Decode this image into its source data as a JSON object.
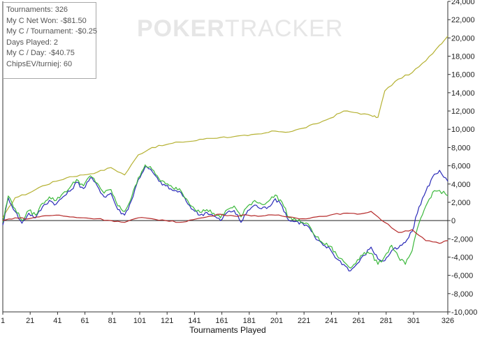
{
  "watermark": {
    "bold": "POKER",
    "thin": "TRACKER"
  },
  "stats": [
    "Tournaments: 326",
    "My C Net Won: -$81.50",
    "My C / Tournament: -$0.25",
    "Days Played: 2",
    "My C / Day: -$40.75",
    "ChipsEV/turniej: 60"
  ],
  "chart_data": {
    "type": "line",
    "xlabel": "Tournaments Played",
    "ylabel": "",
    "xlim": [
      1,
      326
    ],
    "ylim": [
      -10000,
      24000
    ],
    "x_ticks": [
      1,
      21,
      41,
      61,
      81,
      101,
      121,
      141,
      161,
      181,
      201,
      221,
      241,
      261,
      281,
      301,
      326
    ],
    "y_ticks": [
      -10000,
      -8000,
      -6000,
      -4000,
      -2000,
      0,
      2000,
      4000,
      6000,
      8000,
      10000,
      12000,
      14000,
      16000,
      18000,
      20000,
      22000,
      24000
    ],
    "y_tick_labels": [
      "-10,000",
      "-8,000",
      "-6,000",
      "-4,000",
      "-2,000",
      "0",
      "2,000",
      "4,000",
      "6,000",
      "8,000",
      "10,000",
      "12,000",
      "14,000",
      "16,000",
      "18,000",
      "20,000",
      "22,000",
      "24,000"
    ],
    "grid": false,
    "zero_line": true,
    "series": [
      {
        "color": "#b5b132",
        "x": [
          1,
          10,
          20,
          30,
          40,
          50,
          60,
          70,
          80,
          90,
          100,
          110,
          120,
          130,
          140,
          150,
          160,
          170,
          180,
          190,
          200,
          210,
          220,
          230,
          240,
          250,
          260,
          270,
          275,
          280,
          290,
          300,
          310,
          320,
          326
        ],
        "y": [
          300,
          2500,
          3000,
          3800,
          4300,
          4800,
          5000,
          5300,
          5800,
          5000,
          7200,
          8000,
          8300,
          8600,
          8700,
          9000,
          9100,
          9200,
          9300,
          9500,
          9800,
          9700,
          10100,
          10600,
          11200,
          12000,
          11800,
          11500,
          11300,
          14200,
          15500,
          16200,
          17500,
          19200,
          20200
        ]
      },
      {
        "color": "#2a2ab8",
        "x": [
          1,
          5,
          10,
          15,
          20,
          25,
          30,
          35,
          40,
          45,
          50,
          55,
          60,
          65,
          70,
          75,
          80,
          85,
          90,
          95,
          100,
          105,
          110,
          115,
          120,
          125,
          130,
          135,
          140,
          145,
          150,
          155,
          160,
          165,
          170,
          175,
          180,
          185,
          190,
          195,
          200,
          205,
          210,
          215,
          220,
          225,
          230,
          235,
          240,
          245,
          250,
          255,
          260,
          265,
          270,
          275,
          280,
          285,
          290,
          295,
          300,
          305,
          310,
          315,
          320,
          326
        ],
        "y": [
          -500,
          2500,
          1000,
          -300,
          800,
          300,
          1500,
          2200,
          1800,
          2600,
          3200,
          4200,
          3500,
          4700,
          3800,
          2600,
          3000,
          1200,
          600,
          2200,
          4500,
          5900,
          5400,
          4300,
          3800,
          3300,
          3200,
          2100,
          1200,
          600,
          900,
          500,
          0,
          900,
          1100,
          -200,
          1100,
          1700,
          1300,
          1500,
          2400,
          1600,
          0,
          -100,
          -300,
          -800,
          -2100,
          -2700,
          -3100,
          -4200,
          -4800,
          -5500,
          -4700,
          -3800,
          -2900,
          -4200,
          -4400,
          -3300,
          -3000,
          -2400,
          -1200,
          1500,
          3200,
          4800,
          5500,
          4300
        ]
      },
      {
        "color": "#3cb83c",
        "x": [
          1,
          5,
          10,
          15,
          20,
          25,
          30,
          35,
          40,
          45,
          50,
          55,
          60,
          65,
          70,
          75,
          80,
          85,
          90,
          95,
          100,
          105,
          110,
          115,
          120,
          125,
          130,
          135,
          140,
          145,
          150,
          155,
          160,
          165,
          170,
          175,
          180,
          185,
          190,
          195,
          200,
          205,
          210,
          215,
          220,
          225,
          230,
          235,
          240,
          245,
          250,
          255,
          260,
          265,
          270,
          275,
          280,
          285,
          290,
          295,
          300,
          305,
          310,
          315,
          320,
          326
        ],
        "y": [
          -200,
          2700,
          1300,
          0,
          1100,
          600,
          1900,
          2600,
          2200,
          3000,
          3600,
          4500,
          3800,
          4900,
          4100,
          3000,
          3400,
          1600,
          1000,
          2500,
          4700,
          6100,
          5600,
          4600,
          4000,
          3600,
          3500,
          2400,
          1500,
          900,
          1200,
          800,
          300,
          1200,
          1600,
          400,
          1600,
          2200,
          1800,
          2100,
          2800,
          2000,
          300,
          100,
          -200,
          -600,
          -1800,
          -2500,
          -2800,
          -3800,
          -4500,
          -5200,
          -4300,
          -3500,
          -3600,
          -4800,
          -3900,
          -2700,
          -4000,
          -4800,
          -3300,
          -300,
          1600,
          3100,
          3300,
          2700
        ]
      },
      {
        "color": "#b52a2a",
        "x": [
          1,
          10,
          20,
          30,
          40,
          50,
          60,
          70,
          80,
          90,
          100,
          110,
          120,
          130,
          140,
          150,
          160,
          170,
          180,
          190,
          200,
          210,
          220,
          230,
          240,
          250,
          260,
          270,
          280,
          290,
          300,
          310,
          320,
          326
        ],
        "y": [
          0,
          300,
          200,
          500,
          600,
          400,
          300,
          200,
          0,
          -200,
          300,
          200,
          0,
          -200,
          100,
          400,
          700,
          500,
          600,
          500,
          600,
          400,
          200,
          400,
          600,
          800,
          700,
          1000,
          -200,
          -1300,
          -1000,
          -2200,
          -2500,
          -2200
        ]
      }
    ]
  }
}
